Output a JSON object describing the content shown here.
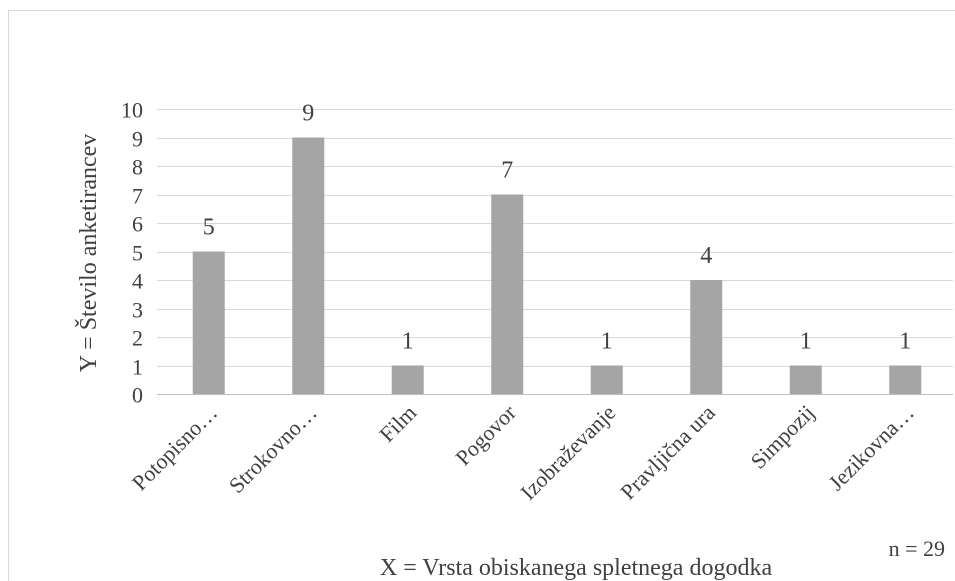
{
  "chart_data": {
    "type": "bar",
    "categories": [
      "Potopisno…",
      "Strokovno…",
      "Film",
      "Pogovor",
      "Izobraževanje",
      "Pravljična ura",
      "Simpozij",
      "Jezikovna…"
    ],
    "values": [
      5,
      9,
      1,
      7,
      1,
      4,
      1,
      1
    ],
    "xlabel": "X = Vrsta obiskanega spletnega dogodka",
    "ylabel": "Y = Število anketirancev",
    "ylim": [
      0,
      10
    ],
    "yticks": [
      0,
      1,
      2,
      3,
      4,
      5,
      6,
      7,
      8,
      9,
      10
    ],
    "data_labels": true,
    "grid": true,
    "legend": "none",
    "bar_color": "#A5A5A5",
    "grid_color": "#D9D9D9"
  },
  "annotation": {
    "n_label": "n = 29"
  }
}
